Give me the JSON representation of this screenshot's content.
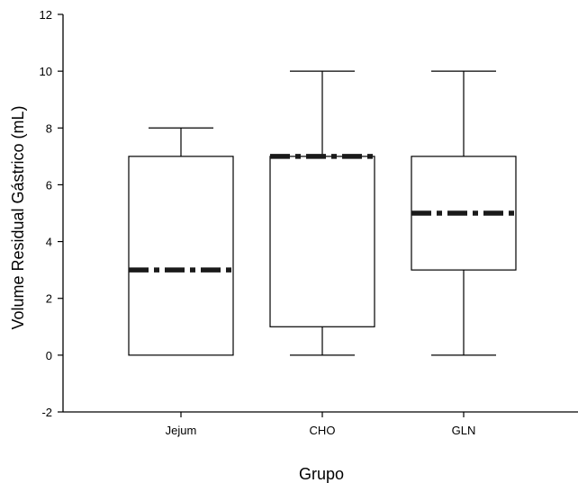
{
  "chart_data": {
    "type": "box",
    "title": "",
    "xlabel": "Grupo",
    "ylabel": "Volume Residual Gástrico (mL)",
    "ylim": [
      -2,
      12
    ],
    "yticks": [
      -2,
      0,
      2,
      4,
      6,
      8,
      10,
      12
    ],
    "categories": [
      "Jejum",
      "CHO",
      "GLN"
    ],
    "boxes": [
      {
        "category": "Jejum",
        "whisker_low": 0,
        "q1": 0,
        "median": 3,
        "q3": 7,
        "whisker_high": 8
      },
      {
        "category": "CHO",
        "whisker_low": 0,
        "q1": 1,
        "median": 7,
        "q3": 7,
        "whisker_high": 10
      },
      {
        "category": "GLN",
        "whisker_low": 0,
        "q1": 3,
        "median": 5,
        "q3": 7,
        "whisker_high": 10
      }
    ],
    "median_line_style": "dash-dot",
    "grid": false,
    "colors": {
      "box_fill": "#ffffff",
      "line": "#000000",
      "median": "#1a1a1a"
    }
  }
}
